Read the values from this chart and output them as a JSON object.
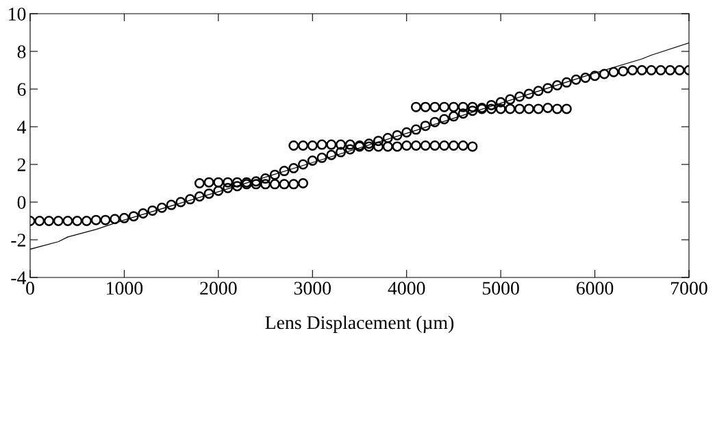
{
  "chart_data": {
    "type": "scatter",
    "xlabel": "Lens Displacement (µm)",
    "xlim": [
      0,
      7000
    ],
    "xticks": [
      0,
      1000,
      2000,
      3000,
      4000,
      5000,
      6000,
      7000
    ],
    "ylim": [
      -4,
      10
    ],
    "yticks": [
      -4,
      -2,
      0,
      2,
      4,
      6,
      8,
      10
    ],
    "grid": false,
    "legend": false,
    "marker": "circle",
    "series": [
      {
        "color": "#000000",
        "x": [
          0,
          100,
          200,
          300,
          400,
          500,
          600,
          700,
          800,
          900,
          1000,
          1100,
          1200,
          1300,
          1400,
          1500,
          1600,
          1700,
          1800,
          1900,
          2000,
          2100,
          2200,
          2300,
          2400,
          2500,
          2600,
          2700,
          2800,
          2900,
          3000,
          3100,
          3200,
          3300,
          3400,
          3500,
          3600,
          3700,
          3800,
          3900,
          4000,
          4100,
          4200,
          4300,
          4400,
          4500,
          4600,
          4700,
          4800,
          4900,
          5000,
          5100,
          5200,
          5300,
          5400,
          5500,
          5600,
          5700,
          5800,
          5900,
          6000,
          6100,
          6200,
          6300,
          6400,
          6500,
          6600,
          6700,
          6800,
          6900,
          7000
        ],
        "values": [
          -1,
          -1,
          -1,
          -1,
          -1,
          -1,
          -1,
          -0.95,
          -0.95,
          -0.9,
          -0.85,
          -0.75,
          -0.6,
          -0.45,
          -0.3,
          -0.15,
          0,
          0.15,
          0.3,
          0.45,
          0.6,
          0.75,
          0.85,
          0.95,
          1.1,
          1.25,
          1.45,
          1.65,
          1.8,
          2.0,
          2.2,
          2.35,
          2.5,
          2.65,
          2.8,
          2.95,
          3.1,
          3.25,
          3.4,
          3.55,
          3.7,
          3.85,
          4.05,
          4.25,
          4.4,
          4.55,
          4.7,
          4.85,
          5.0,
          5.15,
          5.3,
          5.45,
          5.6,
          5.75,
          5.9,
          6.05,
          6.2,
          6.35,
          6.5,
          6.6,
          6.7,
          6.8,
          6.9,
          6.95,
          7.0,
          7.0,
          7.0,
          7.0,
          7.0,
          7.0,
          7.0
        ]
      },
      {
        "color": "#000000",
        "x": [
          1800,
          1900,
          2000,
          2100,
          2200,
          2300,
          2400,
          2500,
          2600,
          2700,
          2800,
          2900
        ],
        "values": [
          1.0,
          1.05,
          1.05,
          1.05,
          1.05,
          1.05,
          0.95,
          0.95,
          0.95,
          0.95,
          0.95,
          1.0
        ]
      },
      {
        "color": "#000000",
        "x": [
          2800,
          2900,
          3000,
          3100,
          3200,
          3300,
          3400,
          3500,
          3600,
          3700,
          3800,
          3900,
          4000,
          4100,
          4200,
          4300,
          4400,
          4500,
          4600,
          4700
        ],
        "values": [
          3.0,
          3.0,
          3.0,
          3.05,
          3.05,
          3.05,
          3.05,
          3.0,
          2.95,
          2.95,
          2.95,
          2.95,
          3.0,
          3.0,
          3.0,
          3.0,
          3.0,
          3.0,
          3.0,
          2.95
        ]
      },
      {
        "color": "#000000",
        "x": [
          4100,
          4200,
          4300,
          4400,
          4500,
          4600,
          4700,
          4800,
          4900,
          5000,
          5100,
          5200,
          5300,
          5400,
          5500,
          5600,
          5700
        ],
        "values": [
          5.05,
          5.05,
          5.05,
          5.05,
          5.05,
          5.05,
          5.05,
          4.95,
          4.95,
          4.95,
          4.95,
          4.95,
          4.95,
          4.95,
          5.0,
          4.95,
          4.95
        ]
      },
      {
        "type": "line",
        "color": "#000000",
        "marker": "none",
        "x": [
          0,
          300,
          400,
          700,
          1000,
          2000,
          3000,
          4000,
          5000,
          6000,
          6500,
          6600,
          7000
        ],
        "values": [
          -2.5,
          -2.1,
          -1.85,
          -1.45,
          -0.95,
          0.55,
          2.1,
          3.65,
          5.25,
          6.85,
          7.6,
          7.8,
          8.45
        ]
      }
    ]
  }
}
